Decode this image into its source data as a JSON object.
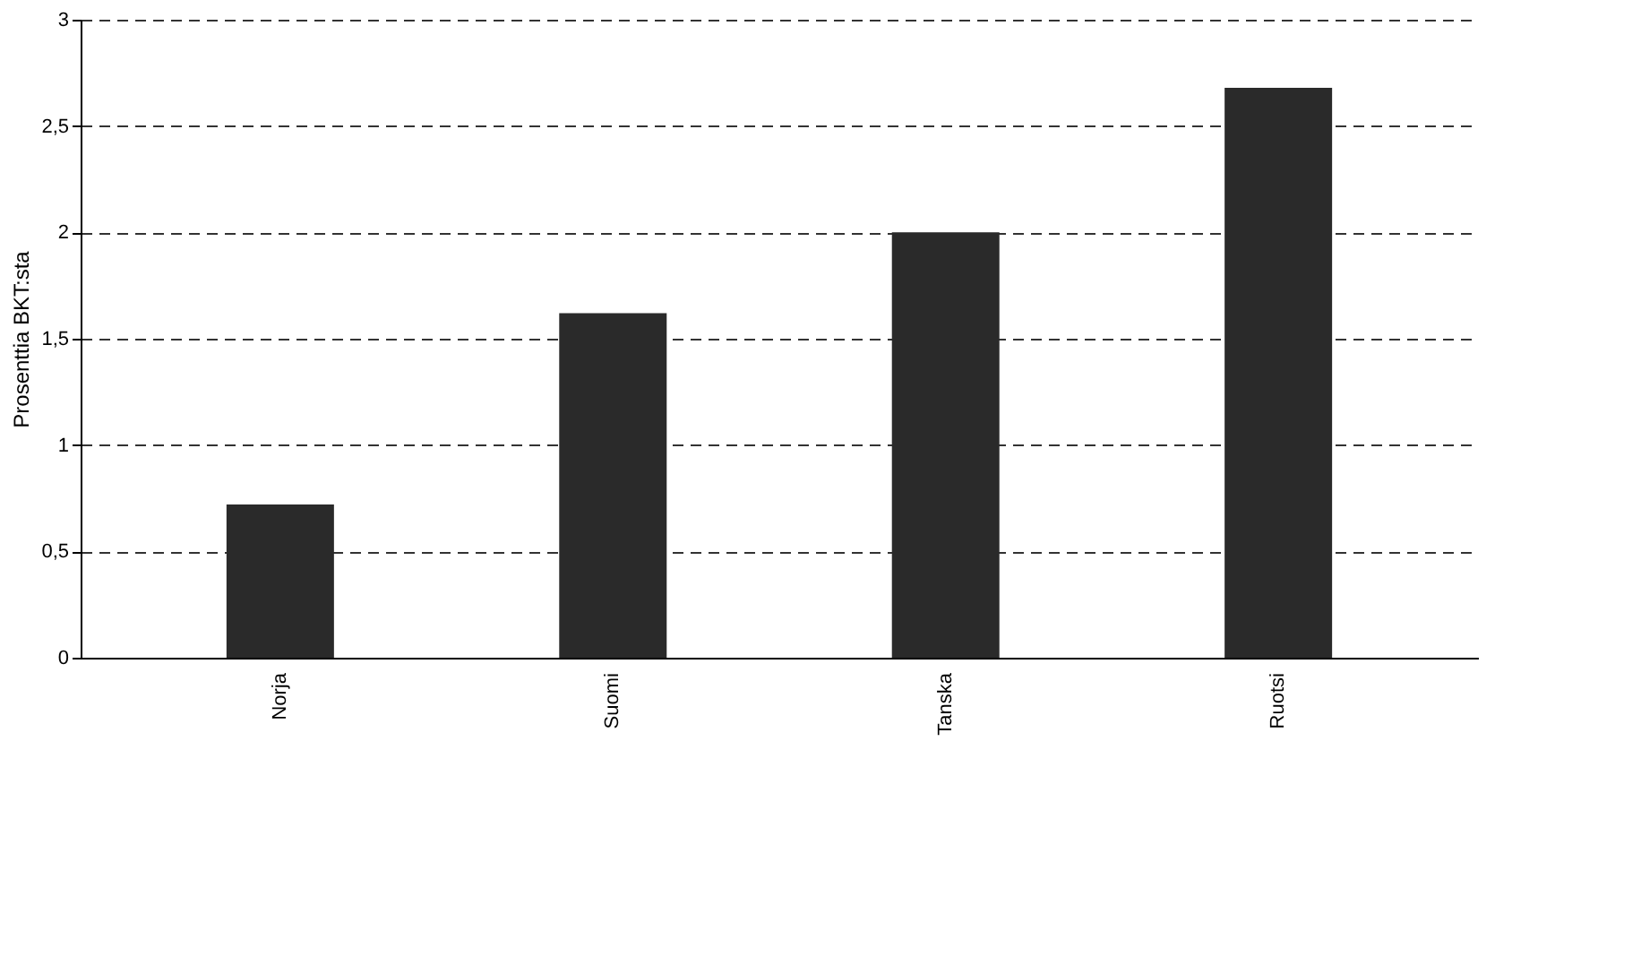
{
  "chart_data": {
    "type": "bar",
    "ylabel": "Prosenttia BKT:sta",
    "categories": [
      "Norja",
      "Suomi",
      "Tanska",
      "Ruotsi"
    ],
    "values": [
      0.72,
      1.62,
      2.0,
      2.68
    ],
    "color": "#2a2a2a",
    "ylim": [
      0,
      3
    ],
    "yticks": [
      0,
      {
        "value": 0.5,
        "label": "0,5"
      },
      1,
      {
        "value": 1.5,
        "label": "1,5"
      },
      2,
      {
        "value": 2.5,
        "label": "2,5"
      },
      3
    ],
    "grid": "y",
    "line_style": "dashed"
  }
}
